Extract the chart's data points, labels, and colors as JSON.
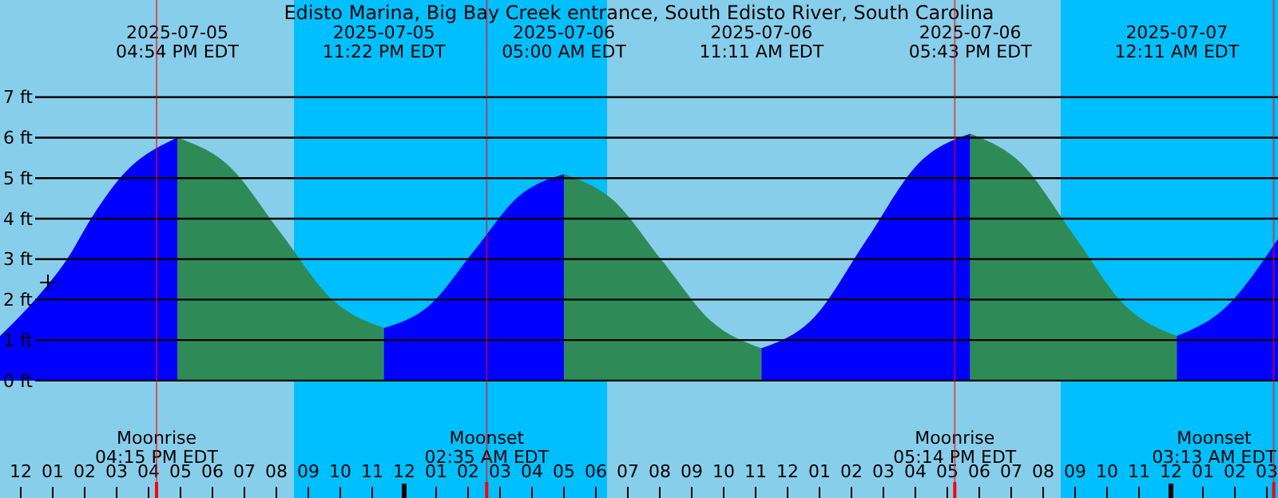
{
  "chart_data": {
    "type": "area",
    "title": "Edisto Marina, Big Bay Creek entrance, South Edisto River, South Carolina",
    "xlim": [
      "2025-07-05T11:21",
      "2025-07-07T03:21"
    ],
    "ylim": [
      -2.9,
      9.4
    ],
    "xticks": [
      {
        "value": "2025-07-05T12:00",
        "label": "12"
      },
      {
        "value": "2025-07-05T13:00",
        "label": "01"
      },
      {
        "value": "2025-07-05T14:00",
        "label": "02"
      },
      {
        "value": "2025-07-05T15:00",
        "label": "03"
      },
      {
        "value": "2025-07-05T16:00",
        "label": "04"
      },
      {
        "value": "2025-07-05T17:00",
        "label": "05"
      },
      {
        "value": "2025-07-05T18:00",
        "label": "06"
      },
      {
        "value": "2025-07-05T19:00",
        "label": "07"
      },
      {
        "value": "2025-07-05T20:00",
        "label": "08"
      },
      {
        "value": "2025-07-05T21:00",
        "label": "09"
      },
      {
        "value": "2025-07-05T22:00",
        "label": "10"
      },
      {
        "value": "2025-07-05T23:00",
        "label": "11"
      },
      {
        "value": "2025-07-06T00:00",
        "label": "12"
      },
      {
        "value": "2025-07-06T01:00",
        "label": "01"
      },
      {
        "value": "2025-07-06T02:00",
        "label": "02"
      },
      {
        "value": "2025-07-06T03:00",
        "label": "03"
      },
      {
        "value": "2025-07-06T04:00",
        "label": "04"
      },
      {
        "value": "2025-07-06T05:00",
        "label": "05"
      },
      {
        "value": "2025-07-06T06:00",
        "label": "06"
      },
      {
        "value": "2025-07-06T07:00",
        "label": "07"
      },
      {
        "value": "2025-07-06T08:00",
        "label": "08"
      },
      {
        "value": "2025-07-06T09:00",
        "label": "09"
      },
      {
        "value": "2025-07-06T10:00",
        "label": "10"
      },
      {
        "value": "2025-07-06T11:00",
        "label": "11"
      },
      {
        "value": "2025-07-06T12:00",
        "label": "12"
      },
      {
        "value": "2025-07-06T13:00",
        "label": "01"
      },
      {
        "value": "2025-07-06T14:00",
        "label": "02"
      },
      {
        "value": "2025-07-06T15:00",
        "label": "03"
      },
      {
        "value": "2025-07-06T16:00",
        "label": "04"
      },
      {
        "value": "2025-07-06T17:00",
        "label": "05"
      },
      {
        "value": "2025-07-06T18:00",
        "label": "06"
      },
      {
        "value": "2025-07-06T19:00",
        "label": "07"
      },
      {
        "value": "2025-07-06T20:00",
        "label": "08"
      },
      {
        "value": "2025-07-06T21:00",
        "label": "09"
      },
      {
        "value": "2025-07-06T22:00",
        "label": "10"
      },
      {
        "value": "2025-07-06T23:00",
        "label": "11"
      },
      {
        "value": "2025-07-07T00:00",
        "label": "12"
      },
      {
        "value": "2025-07-07T01:00",
        "label": "01"
      },
      {
        "value": "2025-07-07T02:00",
        "label": "02"
      },
      {
        "value": "2025-07-07T03:00",
        "label": "03"
      }
    ],
    "yticks": [
      {
        "value": 0,
        "label": "0 ft"
      },
      {
        "value": 1,
        "label": "1 ft"
      },
      {
        "value": 2,
        "label": "2 ft"
      },
      {
        "value": 3,
        "label": "3 ft"
      },
      {
        "value": 4,
        "label": "4 ft"
      },
      {
        "value": 5,
        "label": "5 ft"
      },
      {
        "value": 6,
        "label": "6 ft"
      },
      {
        "value": 7,
        "label": "7 ft"
      }
    ],
    "grid": "y",
    "series": [
      {
        "color": "#0000ff",
        "x": [
          "2025-07-05T11:21",
          "2025-07-05T12:27",
          "2025-07-05T13:27",
          "2025-07-05T14:12",
          "2025-07-05T15:06",
          "2025-07-05T16:54"
        ],
        "values": [
          1.1,
          2,
          3,
          4,
          5,
          6.0
        ]
      },
      {
        "color": "#2e8b57",
        "x": [
          "2025-07-05T16:54",
          "2025-07-05T18:31",
          "2025-07-05T20:08",
          "2025-07-05T21:45",
          "2025-07-05T23:22"
        ],
        "values": [
          6.0,
          5.3,
          3.65,
          2,
          1.3
        ]
      },
      {
        "color": "#0000ff",
        "x": [
          "2025-07-05T23:22",
          "2025-07-06T00:47",
          "2025-07-06T02:11",
          "2025-07-06T03:35",
          "2025-07-06T05:00"
        ],
        "values": [
          1.3,
          1.85,
          3.2,
          4.55,
          5.1
        ]
      },
      {
        "color": "#2e8b57",
        "x": [
          "2025-07-06T05:00",
          "2025-07-06T06:33",
          "2025-07-06T08:05",
          "2025-07-06T09:38",
          "2025-07-06T11:11"
        ],
        "values": [
          5.1,
          4.45,
          2.95,
          1.45,
          0.8
        ]
      },
      {
        "color": "#0000ff",
        "x": [
          "2025-07-06T11:11",
          "2025-07-06T12:49",
          "2025-07-06T14:27",
          "2025-07-06T16:05",
          "2025-07-06T17:43"
        ],
        "values": [
          0.8,
          1.55,
          3.45,
          5.35,
          6.1
        ]
      },
      {
        "color": "#2e8b57",
        "x": [
          "2025-07-06T17:43",
          "2025-07-06T19:20",
          "2025-07-06T20:57",
          "2025-07-06T22:34",
          "2025-07-07T00:11"
        ],
        "values": [
          6.1,
          5.35,
          3.6,
          1.85,
          1.1
        ]
      },
      {
        "color": "#0000ff",
        "x": [
          "2025-07-07T00:11",
          "2025-07-07T01:42",
          "2025-07-07T03:21"
        ],
        "values": [
          1.1,
          1.8,
          3.5
        ]
      }
    ],
    "bands": [
      {
        "axis": "x",
        "from": "2025-07-05T20:33",
        "to": "2025-07-06T06:21",
        "color": "#00bfff"
      },
      {
        "axis": "x",
        "from": "2025-07-06T20:33",
        "to": "2025-07-07T03:21",
        "color": "#00bfff"
      }
    ],
    "ref_lines": [
      {
        "axis": "x",
        "value": "2025-07-05T16:15",
        "label": "Moonrise 04:15 PM EDT",
        "color": "#ff0000"
      },
      {
        "axis": "x",
        "value": "2025-07-06T02:35",
        "label": "Moonset 02:35 AM EDT",
        "color": "#ff0000"
      },
      {
        "axis": "x",
        "value": "2025-07-06T17:14",
        "label": "Moonrise 05:14 PM EDT",
        "color": "#ff0000"
      },
      {
        "axis": "x",
        "value": "2025-07-07T03:13",
        "label": "Moonset 03:13 AM EDT",
        "color": "#ff0000"
      }
    ],
    "annotations": [
      "2025-07-05 04:54 PM EDT",
      "2025-07-05 11:22 PM EDT",
      "2025-07-06 05:00 AM EDT",
      "2025-07-06 11:11 AM EDT",
      "2025-07-06 05:43 PM EDT",
      "2025-07-07 12:11 AM EDT"
    ]
  }
}
